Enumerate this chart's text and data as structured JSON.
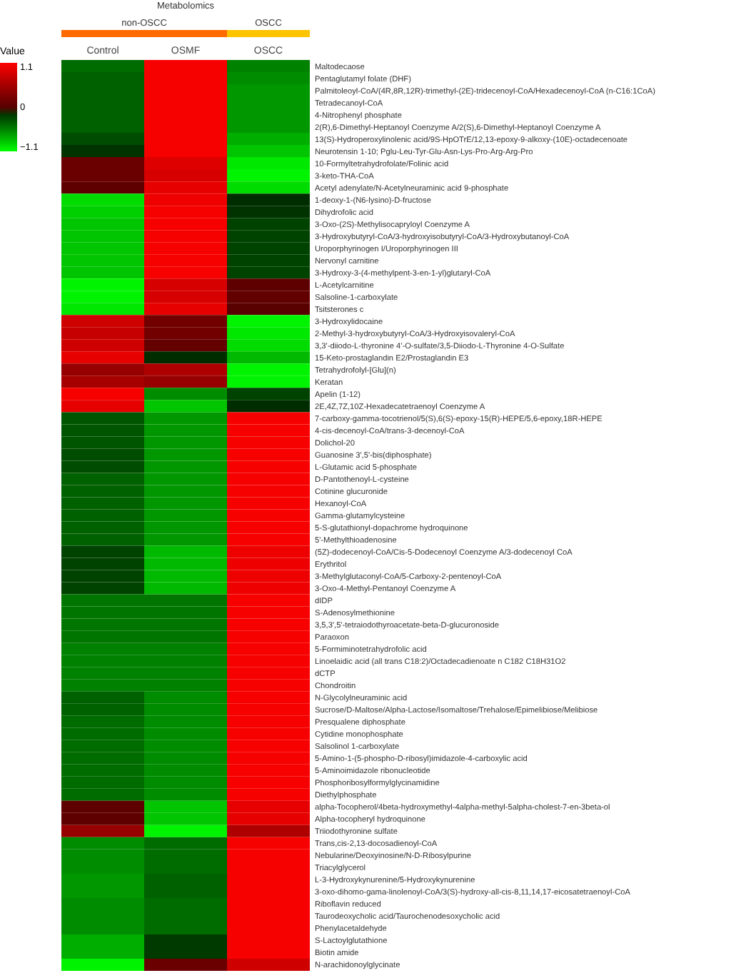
{
  "chart_data": {
    "type": "heatmap",
    "legend_title": "Value",
    "annotations": [
      "Metabolomics",
      "non-OSCC",
      "OSCC"
    ],
    "categories": [
      "Control",
      "OSMF",
      "OSCC"
    ],
    "y_categories": [
      "Maltodecaose",
      "Pentaglutamyl folate (DHF)",
      "Palmitoleoyl-CoA/(4R,8R,12R)-trimethyl-(2E)-tridecenoyl-CoA/Hexadecenoyl-CoA (n-C16:1CoA)",
      "Tetradecanoyl-CoA",
      "4-Nitrophenyl phosphate",
      "2(R),6-Dimethyl-Heptanoyl Coenzyme A/2(S),6-Dimethyl-Heptanoyl Coenzyme A",
      "13(S)-Hydroperoxylinolenic acid/9S-HpOTrE/12,13-epoxy-9-alkoxy-(10E)-octadecenoate",
      "Neurotensin 1-10; Pglu-Leu-Tyr-Glu-Asn-Lys-Pro-Arg-Arg-Pro",
      "10-Formyltetrahydrofolate/Folinic acid",
      "3-keto-THA-CoA",
      "Acetyl adenylate/N-Acetylneuraminic acid 9-phosphate",
      "1-deoxy-1-(N6-lysino)-D-fructose",
      "Dihydrofolic acid",
      "3-Oxo-(2S)-Methylisocapryloyl Coenzyme A",
      "3-Hydroxybutyryl-CoA/3-hydroxyisobutyryl-CoA/3-Hydroxybutanoyl-CoA",
      "Uroporphyrinogen I/Uroporphyrinogen III",
      "Nervonyl carnitine",
      "3-Hydroxy-3-(4-methylpent-3-en-1-yl)glutaryl-CoA",
      "L-Acetylcarnitine",
      "Salsoline-1-carboxylate",
      "Tsitsterones c",
      "3-Hydroxylidocaine",
      "2-Methyl-3-hydroxybutyryl-CoA/3-Hydroxyisovaleryl-CoA",
      "3,3'-diiodo-L-thyronine 4'-O-sulfate/3,5-Diiodo-L-Thyronine 4-O-Sulfate",
      "15-Keto-prostaglandin E2/Prostaglandin E3",
      "Tetrahydrofolyl-[Glu](n)",
      "Keratan",
      "Apelin (1-12)",
      "2E,4Z,7Z,10Z-Hexadecatetraenoyl Coenzyme A",
      "7-carboxy-gamma-tocotrienol/5(S),6(S)-epoxy-15(R)-HEPE/5,6-epoxy,18R-HEPE",
      "4-cis-decenoyl-CoA/trans-3-decenoyl-CoA",
      "Dolichol-20",
      "Guanosine 3',5'-bis(diphosphate)",
      "L-Glutamic acid 5-phosphate",
      "D-Pantothenoyl-L-cysteine",
      "Cotinine glucuronide",
      "Hexanoyl-CoA",
      "Gamma-glutamylcysteine",
      "5-S-glutathionyl-dopachrome hydroquinone",
      "5'-Methylthioadenosine",
      "(5Z)-dodecenoyl-CoA/Cis-5-Dodecenoyl Coenzyme A/3-dodecenoyl CoA",
      "Erythritol",
      "3-Methylglutaconyl-CoA/5-Carboxy-2-pentenoyl-CoA",
      "3-Oxo-4-Methyl-Pentanoyl Coenzyme A",
      "dIDP",
      "S-Adenosylmethionine",
      "3,5,3',5'-tetraiodothyroacetate-beta-D-glucuronoside",
      "Paraoxon",
      "5-Formiminotetrahydrofolic acid",
      "Linoelaidic acid (all trans C18:2)/Octadecadienoate n C182 C18H31O2",
      "dCTP",
      "Chondroitin",
      "N-Glycolylneuraminic acid",
      "Sucrose/D-Maltose/Alpha-Lactose/Isomaltose/Trehalose/Epimelibiose/Melibiose",
      "Presqualene diphosphate",
      "Cytidine monophosphate",
      "Salsolinol 1-carboxylate",
      "5-Amino-1-(5-phospho-D-ribosyl)imidazole-4-carboxylic acid",
      "5-Aminoimidazole ribonucleotide",
      "Phosphoribosylformylglycinamidine",
      "Diethylphosphate",
      "alpha-Tocopherol/4beta-hydroxymethyl-4alpha-methyl-5alpha-cholest-7-en-3beta-ol",
      "Alpha-tocopheryl hydroquinone",
      "Triiodothyronine sulfate",
      "Trans,cis-2,13-docosadienoyl-CoA",
      "Nebularine/Deoxyinosine/N-D-Ribosylpurine",
      "Triacylglycerol",
      "L-3-Hydroxykynurenine/5-Hydroxykynurenine",
      "3-oxo-dihomo-gama-linolenoyl-CoA/3(S)-hydroxy-all-cis-8,11,14,17-eicosatetraenoyl-CoA",
      "Riboflavin reduced",
      "Taurodeoxycholic acid/Taurochenodesoxycholic acid",
      "Phenylacetaldehyde",
      "S-Lactoylglutathione",
      "Biotin amide",
      "N-arachidonoylglycinate"
    ],
    "cells": [
      [
        -0.45,
        1.05,
        -0.55
      ],
      [
        -0.4,
        1.05,
        -0.6
      ],
      [
        -0.4,
        1.05,
        -0.65
      ],
      [
        -0.4,
        1.05,
        -0.65
      ],
      [
        -0.4,
        1.05,
        -0.65
      ],
      [
        -0.4,
        1.05,
        -0.65
      ],
      [
        -0.3,
        1.05,
        -0.75
      ],
      [
        -0.15,
        1.05,
        -0.85
      ],
      [
        0.15,
        0.9,
        -1.0
      ],
      [
        0.15,
        0.85,
        -1.05
      ],
      [
        0.05,
        0.95,
        -0.95
      ],
      [
        -0.95,
        1.0,
        -0.1
      ],
      [
        -0.9,
        1.05,
        -0.15
      ],
      [
        -0.85,
        1.05,
        -0.25
      ],
      [
        -0.85,
        1.05,
        -0.25
      ],
      [
        -0.85,
        1.05,
        -0.25
      ],
      [
        -0.85,
        1.05,
        -0.25
      ],
      [
        -0.85,
        1.05,
        -0.25
      ],
      [
        -1.05,
        0.85,
        0.05
      ],
      [
        -1.05,
        0.85,
        0.08
      ],
      [
        -1.0,
        0.95,
        0.0
      ],
      [
        0.8,
        0.2,
        -1.05
      ],
      [
        0.75,
        0.2,
        -1.0
      ],
      [
        0.8,
        0.1,
        -0.95
      ],
      [
        0.95,
        -0.1,
        -0.8
      ],
      [
        0.45,
        0.6,
        -1.05
      ],
      [
        0.55,
        0.45,
        -1.05
      ],
      [
        1.05,
        -0.6,
        -0.25
      ],
      [
        0.95,
        -0.85,
        -0.1
      ],
      [
        -0.35,
        -0.65,
        1.05
      ],
      [
        -0.35,
        -0.65,
        1.05
      ],
      [
        -0.35,
        -0.65,
        1.05
      ],
      [
        -0.3,
        -0.65,
        1.05
      ],
      [
        -0.3,
        -0.65,
        1.05
      ],
      [
        -0.4,
        -0.65,
        1.05
      ],
      [
        -0.4,
        -0.65,
        1.05
      ],
      [
        -0.4,
        -0.65,
        1.05
      ],
      [
        -0.4,
        -0.65,
        1.05
      ],
      [
        -0.4,
        -0.65,
        1.05
      ],
      [
        -0.4,
        -0.65,
        1.05
      ],
      [
        -0.25,
        -0.8,
        1.0
      ],
      [
        -0.25,
        -0.8,
        1.0
      ],
      [
        -0.25,
        -0.8,
        1.0
      ],
      [
        -0.25,
        -0.8,
        1.0
      ],
      [
        -0.5,
        -0.5,
        1.05
      ],
      [
        -0.5,
        -0.5,
        1.05
      ],
      [
        -0.5,
        -0.5,
        1.05
      ],
      [
        -0.5,
        -0.5,
        1.05
      ],
      [
        -0.55,
        -0.55,
        1.05
      ],
      [
        -0.55,
        -0.55,
        1.05
      ],
      [
        -0.55,
        -0.55,
        1.05
      ],
      [
        -0.55,
        -0.55,
        1.05
      ],
      [
        -0.4,
        -0.6,
        1.05
      ],
      [
        -0.4,
        -0.6,
        1.05
      ],
      [
        -0.45,
        -0.6,
        1.05
      ],
      [
        -0.45,
        -0.6,
        1.05
      ],
      [
        -0.45,
        -0.6,
        1.05
      ],
      [
        -0.45,
        -0.6,
        1.05
      ],
      [
        -0.45,
        -0.6,
        1.05
      ],
      [
        -0.45,
        -0.6,
        1.05
      ],
      [
        -0.45,
        -0.6,
        1.05
      ],
      [
        0.05,
        -0.85,
        0.95
      ],
      [
        0.05,
        -0.85,
        0.95
      ],
      [
        0.45,
        -1.05,
        0.6
      ],
      [
        -0.6,
        -0.45,
        1.05
      ],
      [
        -0.6,
        -0.45,
        1.05
      ],
      [
        -0.6,
        -0.45,
        1.05
      ],
      [
        -0.65,
        -0.4,
        1.05
      ],
      [
        -0.65,
        -0.4,
        1.05
      ],
      [
        -0.6,
        -0.45,
        1.05
      ],
      [
        -0.6,
        -0.45,
        1.05
      ],
      [
        -0.6,
        -0.45,
        1.05
      ],
      [
        -0.75,
        -0.2,
        1.05
      ],
      [
        -0.75,
        -0.2,
        1.05
      ],
      [
        -1.05,
        0.15,
        0.8
      ]
    ],
    "clim": [
      -1.1,
      1.1
    ],
    "cticks": [
      {
        "value": 1.1,
        "label": "1.1"
      },
      {
        "value": 0,
        "label": "0"
      },
      {
        "value": -1.1,
        "label": "−1.1"
      }
    ]
  }
}
